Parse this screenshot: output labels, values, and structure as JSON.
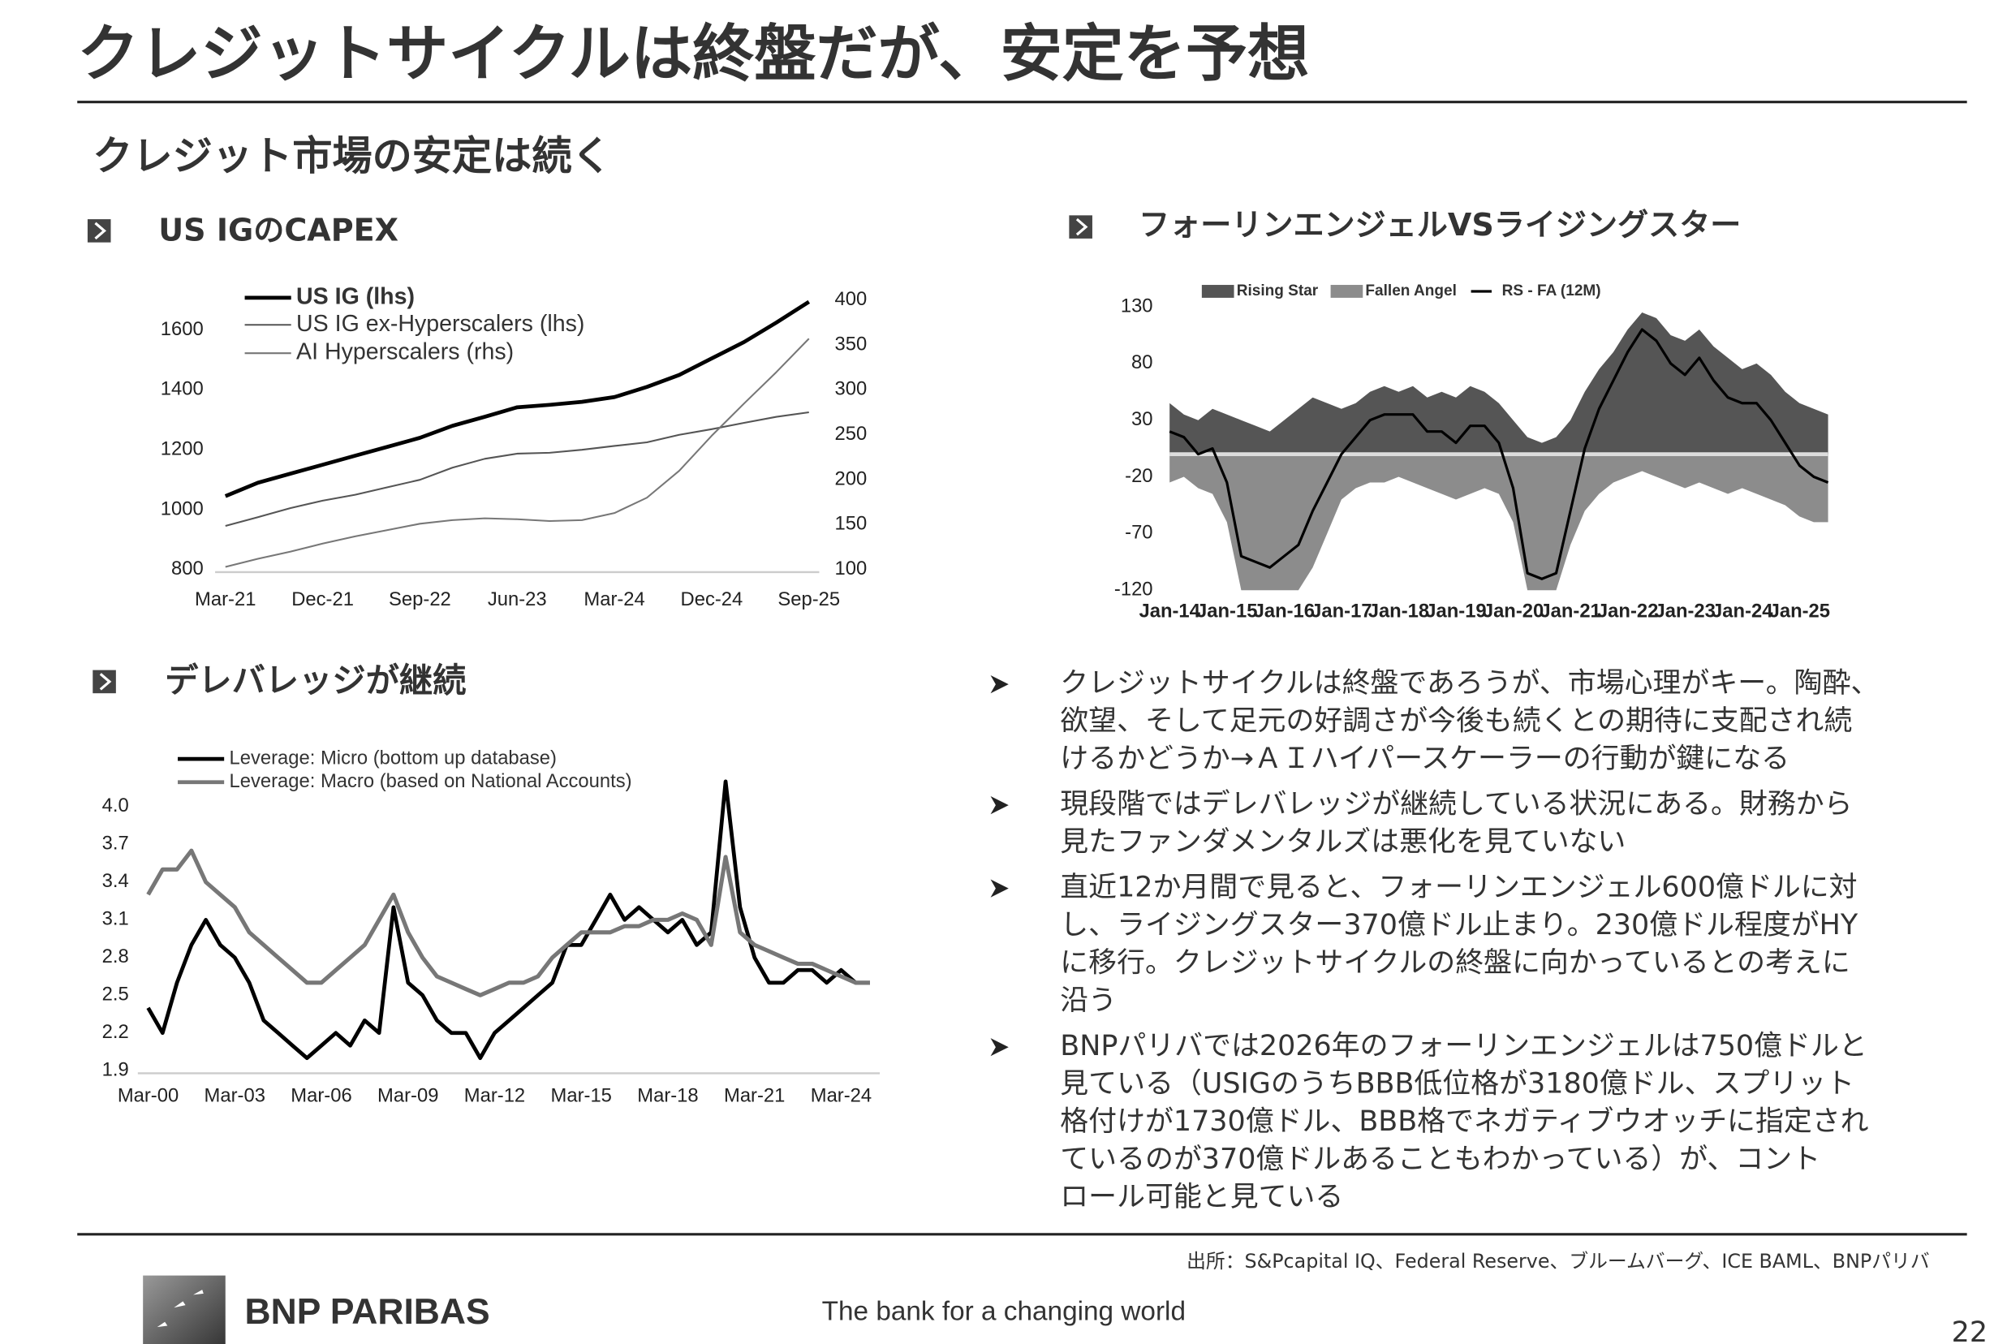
{
  "title": "クレジットサイクルは終盤だが、安定を予想",
  "subtitle": "クレジット市場の安定は続く",
  "chart_data": [
    {
      "type": "line",
      "title": "US IGのCAPEX",
      "categories": [
        "Mar-21",
        null,
        null,
        "Dec-21",
        null,
        null,
        "Sep-22",
        null,
        null,
        "Jun-23",
        null,
        null,
        "Mar-24",
        null,
        null,
        "Dec-24",
        null,
        null,
        "Sep-25"
      ],
      "series": [
        {
          "name": "US IG (lhs)",
          "color": "#000000",
          "values": [
            1045,
            1090,
            1120,
            1150,
            1180,
            1210,
            1240,
            1280,
            1310,
            1342,
            1350,
            1360,
            1376,
            1410,
            1450,
            1505,
            1560,
            1625,
            1694
          ]
        },
        {
          "name": "US IG ex-Hyperscalers (lhs)",
          "color": "#555555",
          "values": [
            946,
            975,
            1005,
            1030,
            1050,
            1075,
            1100,
            1140,
            1170,
            1187,
            1190,
            1200,
            1213,
            1225,
            1250,
            1269,
            1290,
            1310,
            1325
          ]
        },
        {
          "name": "AI Hyperscalers (rhs)",
          "color": "#777777",
          "axis": "y2",
          "values": [
            103,
            112,
            120,
            129,
            137,
            144,
            151,
            155,
            157,
            156,
            154,
            155,
            163,
            180,
            210,
            249,
            285,
            320,
            357
          ]
        }
      ],
      "ylim": [
        800,
        1700
      ],
      "yticks": [
        800,
        1000,
        1200,
        1400,
        1600
      ],
      "y2lim": [
        100,
        400
      ],
      "y2ticks": [
        100,
        150,
        200,
        250,
        300,
        350,
        400
      ],
      "grid": false,
      "legend": "top-left"
    },
    {
      "type": "area",
      "title": "フォーリンエンジェルVSライジングスター",
      "categories": [
        "Jan-14",
        null,
        null,
        null,
        "Jan-15",
        null,
        null,
        null,
        "Jan-16",
        null,
        null,
        null,
        "Jan-17",
        null,
        null,
        null,
        "Jan-18",
        null,
        null,
        null,
        "Jan-19",
        null,
        null,
        null,
        "Jan-20",
        null,
        null,
        null,
        "Jan-21",
        null,
        null,
        null,
        "Jan-22",
        null,
        null,
        null,
        "Jan-23",
        null,
        null,
        null,
        "Jan-24",
        null,
        null,
        null,
        "Jan-25",
        null,
        null
      ],
      "series": [
        {
          "name": "Rising Star",
          "color": "#555555",
          "values": [
            45,
            35,
            30,
            40,
            35,
            30,
            25,
            20,
            30,
            40,
            50,
            45,
            40,
            45,
            55,
            60,
            55,
            60,
            50,
            55,
            50,
            60,
            55,
            45,
            30,
            15,
            10,
            15,
            30,
            55,
            75,
            90,
            110,
            125,
            120,
            105,
            100,
            110,
            95,
            85,
            75,
            80,
            70,
            55,
            45,
            40,
            35
          ]
        },
        {
          "name": "Fallen Angel",
          "color": "#8c8c8c",
          "values": [
            -25,
            -20,
            -30,
            -35,
            -60,
            -120,
            -120,
            -120,
            -120,
            -120,
            -100,
            -70,
            -40,
            -30,
            -25,
            -25,
            -20,
            -25,
            -30,
            -35,
            -40,
            -35,
            -30,
            -35,
            -60,
            -120,
            -120,
            -120,
            -80,
            -50,
            -35,
            -25,
            -20,
            -15,
            -20,
            -25,
            -30,
            -25,
            -30,
            -35,
            -30,
            -35,
            -40,
            -45,
            -55,
            -60,
            -60
          ]
        },
        {
          "name": "RS - FA (12M)",
          "color": "#000000",
          "type": "line",
          "values": [
            20,
            15,
            0,
            5,
            -25,
            -90,
            -95,
            -100,
            -90,
            -80,
            -50,
            -25,
            0,
            15,
            30,
            35,
            35,
            35,
            20,
            20,
            10,
            25,
            25,
            10,
            -30,
            -105,
            -110,
            -105,
            -50,
            5,
            40,
            65,
            90,
            110,
            100,
            80,
            70,
            85,
            65,
            50,
            45,
            45,
            30,
            10,
            -10,
            -20,
            -25
          ]
        }
      ],
      "ylim": [
        -120,
        130
      ],
      "yticks": [
        -120,
        -70,
        -20,
        30,
        80,
        130
      ],
      "grid": false,
      "legend": "top"
    },
    {
      "type": "line",
      "title": "デレバレッジが継続",
      "categories": [
        "Mar-00",
        null,
        null,
        null,
        null,
        null,
        "Mar-03",
        null,
        null,
        null,
        null,
        null,
        "Mar-06",
        null,
        null,
        null,
        null,
        null,
        "Mar-09",
        null,
        null,
        null,
        null,
        null,
        "Mar-12",
        null,
        null,
        null,
        null,
        null,
        "Mar-15",
        null,
        null,
        null,
        null,
        null,
        "Mar-18",
        null,
        null,
        null,
        null,
        null,
        "Mar-21",
        null,
        null,
        null,
        null,
        null,
        "Mar-24",
        null,
        null
      ],
      "series": [
        {
          "name": "Leverage: Micro (bottom up database)",
          "color": "#000000",
          "values": [
            2.4,
            2.2,
            2.6,
            2.9,
            3.1,
            2.9,
            2.8,
            2.6,
            2.3,
            2.2,
            2.1,
            2.0,
            2.1,
            2.2,
            2.1,
            2.3,
            2.2,
            3.2,
            2.6,
            2.5,
            2.3,
            2.2,
            2.2,
            2.0,
            2.2,
            2.3,
            2.4,
            2.5,
            2.6,
            2.9,
            2.9,
            3.1,
            3.3,
            3.1,
            3.2,
            3.1,
            3.0,
            3.1,
            2.9,
            3.0,
            4.2,
            3.2,
            2.8,
            2.6,
            2.6,
            2.7,
            2.7,
            2.6,
            2.7,
            2.6,
            2.6
          ]
        },
        {
          "name": "Leverage: Macro (based on National Accounts)",
          "color": "#777777",
          "values": [
            3.3,
            3.5,
            3.5,
            3.65,
            3.4,
            3.3,
            3.2,
            3.0,
            2.9,
            2.8,
            2.7,
            2.6,
            2.6,
            2.7,
            2.8,
            2.9,
            3.1,
            3.3,
            3.0,
            2.8,
            2.65,
            2.6,
            2.55,
            2.5,
            2.55,
            2.6,
            2.6,
            2.65,
            2.8,
            2.9,
            3.0,
            3.0,
            3.0,
            3.05,
            3.05,
            3.1,
            3.1,
            3.15,
            3.1,
            2.9,
            3.6,
            3.0,
            2.9,
            2.85,
            2.8,
            2.75,
            2.75,
            2.7,
            2.65,
            2.6,
            2.6
          ]
        }
      ],
      "ylim": [
        1.9,
        4.2
      ],
      "yticks": [
        1.9,
        2.2,
        2.5,
        2.8,
        3.1,
        3.4,
        3.7,
        {
          "value": 4,
          "label": "4.0"
        }
      ],
      "grid": false,
      "legend": "top-left"
    }
  ],
  "bullets": [
    [
      "クレジットサイクルは終盤であろうが、市場心理がキー。陶酔、",
      "欲望、そして足元の好調さが今後も続くとの期待に支配され続",
      "けるかどうか→ＡＩハイパースケーラーの行動が鍵になる"
    ],
    [
      "現段階ではデレバレッジが継続している状況にある。財務から",
      "見たファンダメンタルズは悪化を見ていない"
    ],
    [
      "直近12か月間で見ると、フォーリンエンジェル600億ドルに対",
      "し、ライジングスター370億ドル止まり。230億ドル程度がHY",
      "に移行。クレジットサイクルの終盤に向かっているとの考えに",
      "沿う"
    ],
    [
      "BNPパリバでは2026年のフォーリンエンジェルは750億ドルと",
      "見ている（USIGのうちBBB低位格が3180億ドル、スプリット",
      "格付けが1730億ドル、BBB格でネガティブウオッチに指定され",
      "ているのが370億ドルあることもわかっている）が、コント",
      "ロール可能と見ている"
    ]
  ],
  "source": "出所：S&Pcapital IQ、Federal Reserve、ブルームバーグ、ICE BAML、BNPパリバ",
  "footer": {
    "brand": "BNP PARIBAS",
    "tagline": "The bank for a changing world",
    "page": "22"
  }
}
